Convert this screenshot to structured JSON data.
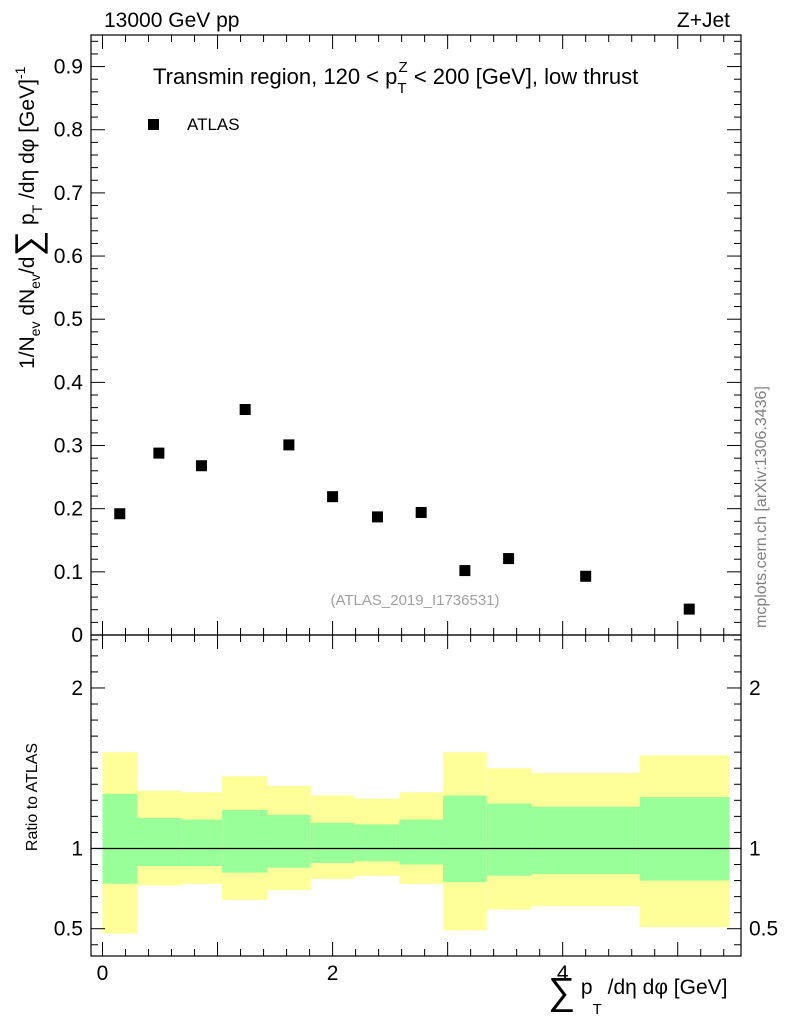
{
  "header": {
    "left": "13000 GeV pp",
    "right": "Z+Jet",
    "side": "mcplots.cern.ch [arXiv:1306.3436]"
  },
  "chart_data": [
    {
      "type": "scatter",
      "panel": "main",
      "title": "Transmin region, 120 < p_T^Z < 200 [GeV], low thrust",
      "title_parts": {
        "a": "Transmin region, 120 < p",
        "sub": "T",
        "sup": "Z",
        "b": " < 200 [GeV], low thrust"
      },
      "ylabel": "1/N_ev dN_ev/d∑ p_T /dη dφ [GeV]^-1",
      "ylabel_parts": {
        "a": "1/N",
        "sub_ev": "ev",
        "b": " dN",
        "c": "/d",
        "sum": "∑",
        "d": " p",
        "sub_T": "T",
        "e": " /dη dφ  [GeV]",
        "sup": "-1"
      },
      "watermark": "(ATLAS_2019_I1736531)",
      "ylim": [
        0,
        0.95
      ],
      "yticks": [
        {
          "v": 0,
          "label": "0"
        },
        {
          "v": 0.1,
          "label": "0.1"
        },
        {
          "v": 0.2,
          "label": "0.2"
        },
        {
          "v": 0.3,
          "label": "0.3"
        },
        {
          "v": 0.4,
          "label": "0.4"
        },
        {
          "v": 0.5,
          "label": "0.5"
        },
        {
          "v": 0.6,
          "label": "0.6"
        },
        {
          "v": 0.7,
          "label": "0.7"
        },
        {
          "v": 0.8,
          "label": "0.8"
        },
        {
          "v": 0.9,
          "label": "0.9"
        }
      ],
      "legend": [
        {
          "name": "ATLAS",
          "marker": "square"
        }
      ],
      "series": [
        {
          "name": "ATLAS",
          "x": [
            0.15,
            0.49,
            0.86,
            1.24,
            1.62,
            2.0,
            2.39,
            2.77,
            3.15,
            3.53,
            4.2,
            5.1
          ],
          "y": [
            0.192,
            0.288,
            0.268,
            0.357,
            0.301,
            0.219,
            0.187,
            0.194,
            0.102,
            0.121,
            0.093,
            0.041
          ]
        }
      ]
    },
    {
      "type": "area",
      "panel": "ratio",
      "ylabel": "Ratio to ATLAS",
      "xlabel": "∑ p_T /dη dφ [GeV]",
      "xlabel_parts": {
        "sum": "∑",
        "a": " p",
        "sub": "T",
        "b": " /dη dφ [GeV]"
      },
      "xlim": [
        -0.1,
        5.55
      ],
      "ylim": [
        0.33,
        2.33
      ],
      "xticks": [
        {
          "v": 0,
          "label": "0"
        },
        {
          "v": 2,
          "label": "2"
        },
        {
          "v": 4,
          "label": "4"
        }
      ],
      "yticks": [
        {
          "v": 0.5,
          "label": "0.5"
        },
        {
          "v": 1,
          "label": "1"
        },
        {
          "v": 2,
          "label": "2"
        }
      ],
      "reference": 1,
      "bands": [
        {
          "x0": 0.0,
          "x1": 0.3,
          "y_lo": 0.47,
          "y_hi": 1.6,
          "g_lo": 0.78,
          "g_hi": 1.34
        },
        {
          "x0": 0.3,
          "x1": 0.69,
          "y_lo": 0.77,
          "y_hi": 1.36,
          "g_lo": 0.89,
          "g_hi": 1.19
        },
        {
          "x0": 0.69,
          "x1": 1.04,
          "y_lo": 0.78,
          "y_hi": 1.35,
          "g_lo": 0.89,
          "g_hi": 1.18
        },
        {
          "x0": 1.04,
          "x1": 1.43,
          "y_lo": 0.68,
          "y_hi": 1.45,
          "g_lo": 0.85,
          "g_hi": 1.24
        },
        {
          "x0": 1.43,
          "x1": 1.81,
          "y_lo": 0.74,
          "y_hi": 1.39,
          "g_lo": 0.88,
          "g_hi": 1.21
        },
        {
          "x0": 1.81,
          "x1": 2.19,
          "y_lo": 0.81,
          "y_hi": 1.33,
          "g_lo": 0.91,
          "g_hi": 1.16
        },
        {
          "x0": 2.19,
          "x1": 2.58,
          "y_lo": 0.83,
          "y_hi": 1.31,
          "g_lo": 0.92,
          "g_hi": 1.15
        },
        {
          "x0": 2.58,
          "x1": 2.96,
          "y_lo": 0.78,
          "y_hi": 1.35,
          "g_lo": 0.9,
          "g_hi": 1.18
        },
        {
          "x0": 2.96,
          "x1": 3.34,
          "y_lo": 0.49,
          "y_hi": 1.6,
          "g_lo": 0.79,
          "g_hi": 1.33
        },
        {
          "x0": 3.34,
          "x1": 3.73,
          "y_lo": 0.62,
          "y_hi": 1.5,
          "g_lo": 0.83,
          "g_hi": 1.28
        },
        {
          "x0": 3.73,
          "x1": 4.67,
          "y_lo": 0.64,
          "y_hi": 1.47,
          "g_lo": 0.84,
          "g_hi": 1.26
        },
        {
          "x0": 4.67,
          "x1": 5.45,
          "y_lo": 0.51,
          "y_hi": 1.58,
          "g_lo": 0.8,
          "g_hi": 1.32
        }
      ],
      "colors": {
        "outer": "#ffff99",
        "inner": "#99ff99",
        "line": "#000000"
      }
    }
  ]
}
